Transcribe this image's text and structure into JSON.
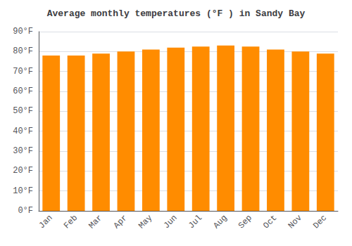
{
  "chart_data": {
    "type": "bar",
    "title": "Average monthly temperatures (°F ) in Sandy Bay",
    "categories": [
      "Jan",
      "Feb",
      "Mar",
      "Apr",
      "May",
      "Jun",
      "Jul",
      "Aug",
      "Sep",
      "Oct",
      "Nov",
      "Dec"
    ],
    "values": [
      78,
      78,
      79,
      80,
      81,
      82,
      82.5,
      83,
      82.5,
      81,
      80,
      79
    ],
    "color": "#FF8C00",
    "ylim": [
      0,
      90
    ],
    "yticks": [
      {
        "value": 0,
        "label": "0°F"
      },
      {
        "value": 10,
        "label": "10°F"
      },
      {
        "value": 20,
        "label": "20°F"
      },
      {
        "value": 30,
        "label": "30°F"
      },
      {
        "value": 40,
        "label": "40°F"
      },
      {
        "value": 50,
        "label": "50°F"
      },
      {
        "value": 60,
        "label": "60°F"
      },
      {
        "value": 70,
        "label": "70°F"
      },
      {
        "value": 80,
        "label": "80°F"
      },
      {
        "value": 90,
        "label": "90°F"
      }
    ],
    "grid": true
  }
}
